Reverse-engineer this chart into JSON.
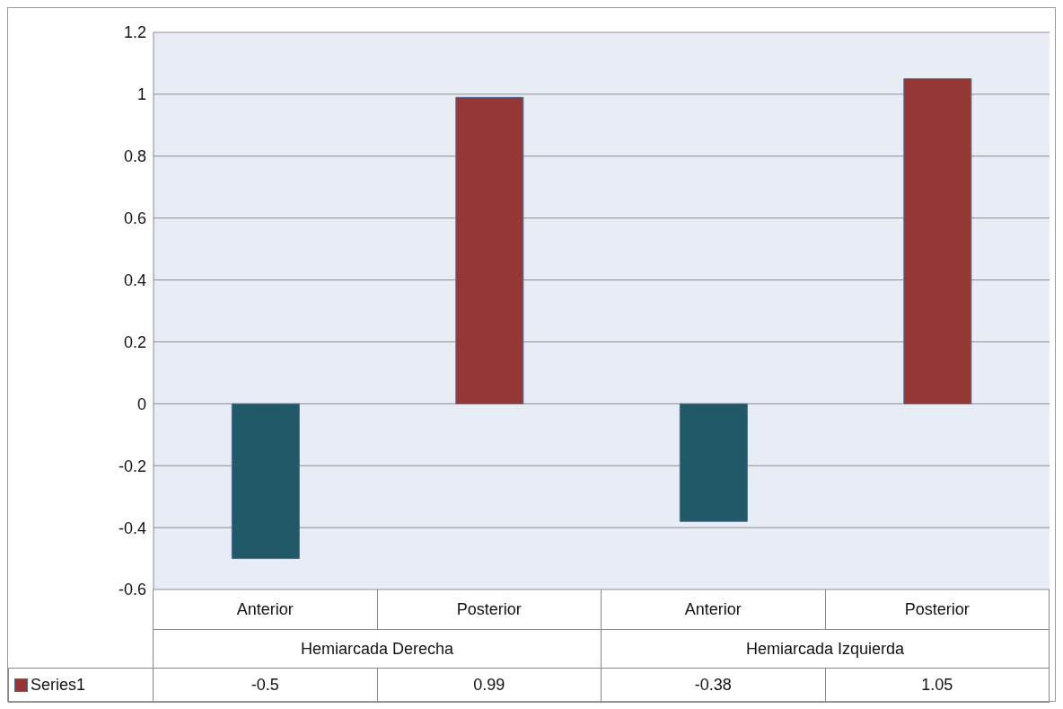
{
  "chart_data": {
    "type": "bar",
    "categories": [
      "Anterior",
      "Posterior",
      "Anterior",
      "Posterior"
    ],
    "series": [
      {
        "name": "Series1",
        "color": "#953735",
        "colors": [
          "#215968",
          "#953735",
          "#215968",
          "#953735"
        ],
        "values": [
          -0.5,
          0.99,
          -0.38,
          1.05
        ]
      }
    ],
    "annotations": [
      "Hemiarcada Derecha",
      "Hemiarcada Izquierda"
    ],
    "ylim": [
      -0.6,
      1.2
    ],
    "yticks": [
      -0.6,
      -0.4,
      -0.2,
      0,
      0.2,
      0.4,
      0.6,
      0.8,
      1,
      1.2
    ],
    "grid": "y",
    "legend": "bottom",
    "data_labels": true
  }
}
